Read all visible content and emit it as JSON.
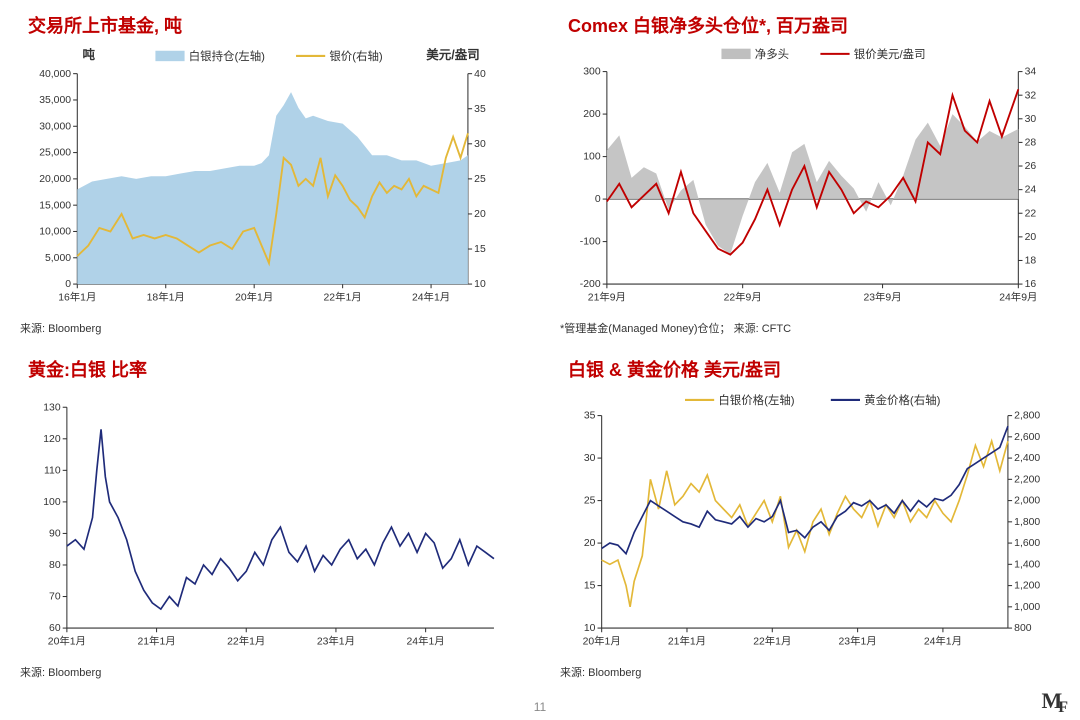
{
  "page_number": "11",
  "colors": {
    "title_red": "#c00000",
    "axis": "#333333",
    "tick_font": "#333333",
    "area_fill": "#b0d2e8",
    "line_yellow": "#e3b838",
    "line_red": "#c00000",
    "line_navy": "#1f2b7a",
    "grey_area": "#bfbfbf",
    "background": "#ffffff"
  },
  "font_sizes": {
    "title": 18,
    "axis_label": 12,
    "legend": 11,
    "tick": 10,
    "source": 11
  },
  "chart_tl": {
    "title": "交易所上市基金, 吨",
    "left_label": "吨",
    "right_label": "美元/盎司",
    "legend": [
      "白银持仓(左轴)",
      "银价(右轴)"
    ],
    "legend_colors": [
      "#b0d2e8",
      "#e3b838"
    ],
    "x_labels": [
      "16年1月",
      "18年1月",
      "20年1月",
      "22年1月",
      "24年1月"
    ],
    "x_positions": [
      0,
      24,
      48,
      72,
      96
    ],
    "x_range": [
      0,
      106
    ],
    "y_left": {
      "min": 0,
      "max": 40000,
      "step": 5000
    },
    "y_right": {
      "min": 10,
      "max": 40,
      "step": 5
    },
    "area_color": "#b0d2e8",
    "line_color": "#e3b838",
    "area_series": [
      [
        0,
        18000
      ],
      [
        4,
        19500
      ],
      [
        8,
        20000
      ],
      [
        12,
        20500
      ],
      [
        16,
        20000
      ],
      [
        20,
        20500
      ],
      [
        24,
        20500
      ],
      [
        28,
        21000
      ],
      [
        32,
        21500
      ],
      [
        36,
        21500
      ],
      [
        40,
        22000
      ],
      [
        44,
        22500
      ],
      [
        48,
        22500
      ],
      [
        50,
        23000
      ],
      [
        52,
        24500
      ],
      [
        54,
        32000
      ],
      [
        56,
        34000
      ],
      [
        58,
        36500
      ],
      [
        60,
        33500
      ],
      [
        62,
        31500
      ],
      [
        64,
        32000
      ],
      [
        68,
        31000
      ],
      [
        72,
        30500
      ],
      [
        76,
        28000
      ],
      [
        80,
        24500
      ],
      [
        84,
        24500
      ],
      [
        88,
        23500
      ],
      [
        92,
        23500
      ],
      [
        96,
        22500
      ],
      [
        100,
        23000
      ],
      [
        104,
        23500
      ],
      [
        106,
        24500
      ]
    ],
    "line_series": [
      [
        0,
        14.0
      ],
      [
        3,
        15.5
      ],
      [
        6,
        18.0
      ],
      [
        9,
        17.5
      ],
      [
        12,
        20.0
      ],
      [
        15,
        16.5
      ],
      [
        18,
        17.0
      ],
      [
        21,
        16.5
      ],
      [
        24,
        17.0
      ],
      [
        27,
        16.5
      ],
      [
        30,
        15.5
      ],
      [
        33,
        14.5
      ],
      [
        36,
        15.5
      ],
      [
        39,
        16.0
      ],
      [
        42,
        15.0
      ],
      [
        45,
        17.5
      ],
      [
        48,
        18.0
      ],
      [
        50,
        15.5
      ],
      [
        52,
        13.0
      ],
      [
        54,
        20.0
      ],
      [
        56,
        28.0
      ],
      [
        58,
        27.0
      ],
      [
        60,
        24.0
      ],
      [
        62,
        25.0
      ],
      [
        64,
        24.0
      ],
      [
        66,
        28.0
      ],
      [
        68,
        22.5
      ],
      [
        70,
        25.5
      ],
      [
        72,
        24.0
      ],
      [
        74,
        22.0
      ],
      [
        76,
        21.0
      ],
      [
        78,
        19.5
      ],
      [
        80,
        22.5
      ],
      [
        82,
        24.5
      ],
      [
        84,
        23.0
      ],
      [
        86,
        24.0
      ],
      [
        88,
        23.5
      ],
      [
        90,
        25.0
      ],
      [
        92,
        22.5
      ],
      [
        94,
        24.0
      ],
      [
        96,
        23.5
      ],
      [
        98,
        23.0
      ],
      [
        100,
        28.0
      ],
      [
        102,
        31.0
      ],
      [
        104,
        28.0
      ],
      [
        106,
        31.5
      ]
    ],
    "source": "来源: Bloomberg"
  },
  "chart_tr": {
    "title": "Comex 白银净多头仓位*, 百万盎司",
    "legend": [
      "净多头",
      "银价美元/盎司"
    ],
    "legend_colors": [
      "#bfbfbf",
      "#c00000"
    ],
    "x_labels": [
      "21年9月",
      "22年9月",
      "23年9月",
      "24年9月"
    ],
    "x_positions": [
      0,
      33,
      67,
      100
    ],
    "x_range": [
      0,
      100
    ],
    "y_left": {
      "min": -200,
      "max": 300,
      "step": 100
    },
    "y_right": {
      "min": 16,
      "max": 34,
      "step": 2
    },
    "area_color": "#bfbfbf",
    "line_color": "#c00000",
    "area_series": [
      [
        0,
        115
      ],
      [
        3,
        150
      ],
      [
        6,
        50
      ],
      [
        9,
        75
      ],
      [
        12,
        60
      ],
      [
        15,
        -25
      ],
      [
        18,
        20
      ],
      [
        21,
        45
      ],
      [
        24,
        -60
      ],
      [
        27,
        -110
      ],
      [
        30,
        -130
      ],
      [
        33,
        -40
      ],
      [
        36,
        40
      ],
      [
        39,
        85
      ],
      [
        42,
        15
      ],
      [
        45,
        110
      ],
      [
        48,
        130
      ],
      [
        51,
        40
      ],
      [
        54,
        90
      ],
      [
        57,
        55
      ],
      [
        60,
        25
      ],
      [
        63,
        -30
      ],
      [
        66,
        40
      ],
      [
        69,
        -15
      ],
      [
        72,
        55
      ],
      [
        75,
        140
      ],
      [
        78,
        180
      ],
      [
        81,
        125
      ],
      [
        84,
        200
      ],
      [
        87,
        170
      ],
      [
        90,
        135
      ],
      [
        93,
        160
      ],
      [
        96,
        145
      ],
      [
        100,
        165
      ]
    ],
    "line_series": [
      [
        0,
        23.0
      ],
      [
        3,
        24.5
      ],
      [
        6,
        22.5
      ],
      [
        9,
        23.5
      ],
      [
        12,
        24.5
      ],
      [
        15,
        22.0
      ],
      [
        18,
        25.5
      ],
      [
        21,
        22.0
      ],
      [
        24,
        20.5
      ],
      [
        27,
        19.0
      ],
      [
        30,
        18.5
      ],
      [
        33,
        19.5
      ],
      [
        36,
        21.5
      ],
      [
        39,
        24.0
      ],
      [
        42,
        21.0
      ],
      [
        45,
        24.0
      ],
      [
        48,
        26.0
      ],
      [
        51,
        22.5
      ],
      [
        54,
        25.5
      ],
      [
        57,
        24.0
      ],
      [
        60,
        22.0
      ],
      [
        63,
        23.0
      ],
      [
        66,
        22.5
      ],
      [
        69,
        23.5
      ],
      [
        72,
        25.0
      ],
      [
        75,
        23.0
      ],
      [
        78,
        28.0
      ],
      [
        81,
        27.0
      ],
      [
        84,
        32.0
      ],
      [
        87,
        29.0
      ],
      [
        90,
        28.0
      ],
      [
        93,
        31.5
      ],
      [
        96,
        28.5
      ],
      [
        100,
        32.5
      ]
    ],
    "source": "*管理基金(Managed Money)仓位；  来源: CFTC"
  },
  "chart_bl": {
    "title": "黄金:白银 比率",
    "x_labels": [
      "20年1月",
      "21年1月",
      "22年1月",
      "23年1月",
      "24年1月"
    ],
    "x_positions": [
      0,
      21,
      42,
      63,
      84
    ],
    "x_range": [
      0,
      100
    ],
    "y_left": {
      "min": 60,
      "max": 130,
      "step": 10
    },
    "line_color": "#1f2b7a",
    "line_series": [
      [
        0,
        86
      ],
      [
        2,
        88
      ],
      [
        4,
        85
      ],
      [
        6,
        95
      ],
      [
        7,
        110
      ],
      [
        8,
        123
      ],
      [
        9,
        108
      ],
      [
        10,
        100
      ],
      [
        12,
        95
      ],
      [
        14,
        88
      ],
      [
        16,
        78
      ],
      [
        18,
        72
      ],
      [
        20,
        68
      ],
      [
        22,
        66
      ],
      [
        24,
        70
      ],
      [
        26,
        67
      ],
      [
        28,
        76
      ],
      [
        30,
        74
      ],
      [
        32,
        80
      ],
      [
        34,
        77
      ],
      [
        36,
        82
      ],
      [
        38,
        79
      ],
      [
        40,
        75
      ],
      [
        42,
        78
      ],
      [
        44,
        84
      ],
      [
        46,
        80
      ],
      [
        48,
        88
      ],
      [
        50,
        92
      ],
      [
        52,
        84
      ],
      [
        54,
        81
      ],
      [
        56,
        86
      ],
      [
        58,
        78
      ],
      [
        60,
        83
      ],
      [
        62,
        80
      ],
      [
        64,
        85
      ],
      [
        66,
        88
      ],
      [
        68,
        82
      ],
      [
        70,
        85
      ],
      [
        72,
        80
      ],
      [
        74,
        87
      ],
      [
        76,
        92
      ],
      [
        78,
        86
      ],
      [
        80,
        90
      ],
      [
        82,
        84
      ],
      [
        84,
        90
      ],
      [
        86,
        87
      ],
      [
        88,
        79
      ],
      [
        90,
        82
      ],
      [
        92,
        88
      ],
      [
        94,
        80
      ],
      [
        96,
        86
      ],
      [
        98,
        84
      ],
      [
        100,
        82
      ]
    ],
    "source": "来源: Bloomberg"
  },
  "chart_br": {
    "title": "白银 & 黄金价格 美元/盎司",
    "legend": [
      "白银价格(左轴)",
      "黄金价格(右轴)"
    ],
    "legend_colors": [
      "#e3b838",
      "#1f2b7a"
    ],
    "x_labels": [
      "20年1月",
      "21年1月",
      "22年1月",
      "23年1月",
      "24年1月"
    ],
    "x_positions": [
      0,
      21,
      42,
      63,
      84
    ],
    "x_range": [
      0,
      100
    ],
    "y_left": {
      "min": 10,
      "max": 35,
      "step": 5
    },
    "y_right": {
      "min": 800,
      "max": 2800,
      "step": 200
    },
    "silver_color": "#e3b838",
    "gold_color": "#1f2b7a",
    "silver_series": [
      [
        0,
        18.0
      ],
      [
        2,
        17.5
      ],
      [
        4,
        18.0
      ],
      [
        6,
        15.0
      ],
      [
        7,
        12.5
      ],
      [
        8,
        15.5
      ],
      [
        10,
        18.5
      ],
      [
        12,
        27.5
      ],
      [
        14,
        24.0
      ],
      [
        16,
        28.5
      ],
      [
        18,
        24.5
      ],
      [
        20,
        25.5
      ],
      [
        22,
        27.0
      ],
      [
        24,
        26.0
      ],
      [
        26,
        28.0
      ],
      [
        28,
        25.0
      ],
      [
        30,
        24.0
      ],
      [
        32,
        23.0
      ],
      [
        34,
        24.5
      ],
      [
        36,
        22.0
      ],
      [
        38,
        23.5
      ],
      [
        40,
        25.0
      ],
      [
        42,
        22.5
      ],
      [
        44,
        25.5
      ],
      [
        46,
        19.5
      ],
      [
        48,
        21.5
      ],
      [
        50,
        19.0
      ],
      [
        52,
        22.5
      ],
      [
        54,
        24.0
      ],
      [
        56,
        21.0
      ],
      [
        58,
        23.5
      ],
      [
        60,
        25.5
      ],
      [
        62,
        24.0
      ],
      [
        64,
        23.0
      ],
      [
        66,
        25.0
      ],
      [
        68,
        22.0
      ],
      [
        70,
        24.5
      ],
      [
        72,
        23.0
      ],
      [
        74,
        25.0
      ],
      [
        76,
        22.5
      ],
      [
        78,
        24.0
      ],
      [
        80,
        23.0
      ],
      [
        82,
        25.0
      ],
      [
        84,
        23.5
      ],
      [
        86,
        22.5
      ],
      [
        88,
        25.0
      ],
      [
        90,
        28.0
      ],
      [
        92,
        31.5
      ],
      [
        94,
        29.0
      ],
      [
        96,
        32.0
      ],
      [
        98,
        28.5
      ],
      [
        100,
        32.0
      ]
    ],
    "gold_series": [
      [
        0,
        1550
      ],
      [
        2,
        1600
      ],
      [
        4,
        1580
      ],
      [
        6,
        1500
      ],
      [
        8,
        1700
      ],
      [
        10,
        1850
      ],
      [
        12,
        2000
      ],
      [
        14,
        1950
      ],
      [
        16,
        1900
      ],
      [
        18,
        1850
      ],
      [
        20,
        1800
      ],
      [
        22,
        1780
      ],
      [
        24,
        1750
      ],
      [
        26,
        1900
      ],
      [
        28,
        1820
      ],
      [
        30,
        1800
      ],
      [
        32,
        1780
      ],
      [
        34,
        1850
      ],
      [
        36,
        1750
      ],
      [
        38,
        1830
      ],
      [
        40,
        1800
      ],
      [
        42,
        1850
      ],
      [
        44,
        2000
      ],
      [
        46,
        1700
      ],
      [
        48,
        1720
      ],
      [
        50,
        1650
      ],
      [
        52,
        1750
      ],
      [
        54,
        1800
      ],
      [
        56,
        1720
      ],
      [
        58,
        1850
      ],
      [
        60,
        1900
      ],
      [
        62,
        1980
      ],
      [
        64,
        1950
      ],
      [
        66,
        2000
      ],
      [
        68,
        1920
      ],
      [
        70,
        1960
      ],
      [
        72,
        1880
      ],
      [
        74,
        2000
      ],
      [
        76,
        1900
      ],
      [
        78,
        2000
      ],
      [
        80,
        1940
      ],
      [
        82,
        2020
      ],
      [
        84,
        2000
      ],
      [
        86,
        2050
      ],
      [
        88,
        2150
      ],
      [
        90,
        2300
      ],
      [
        92,
        2350
      ],
      [
        94,
        2400
      ],
      [
        96,
        2450
      ],
      [
        98,
        2500
      ],
      [
        100,
        2700
      ]
    ],
    "source": "来源: Bloomberg"
  }
}
